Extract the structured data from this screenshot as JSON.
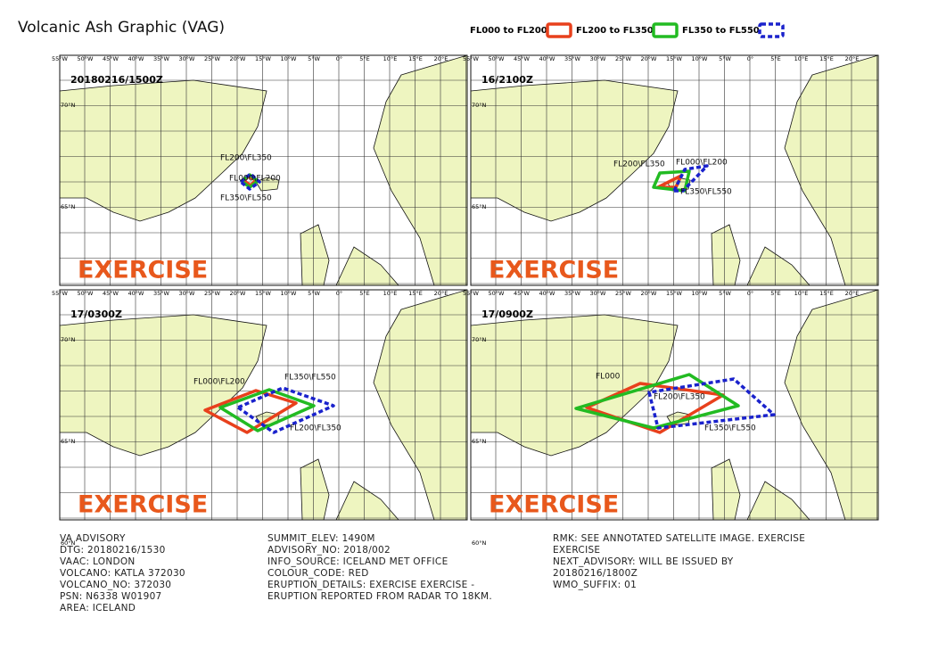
{
  "title": "Volcanic Ash Graphic (VAG)",
  "legend": [
    {
      "label": "FL000 to FL200",
      "color": "#e8401c"
    },
    {
      "label": "FL200 to FL350",
      "color": "#22bb22"
    },
    {
      "label": "FL350 to FL550",
      "color": "#1a22cc"
    }
  ],
  "longitude_labels": [
    "55°W",
    "50°W",
    "45°W",
    "40°W",
    "35°W",
    "30°W",
    "25°W",
    "20°W",
    "15°W",
    "10°W",
    "5°W",
    "0°",
    "5°E",
    "10°E",
    "15°E",
    "20°E"
  ],
  "latitude_labels": [
    "70°N",
    "65°N",
    "60°N"
  ],
  "panels": [
    {
      "time": "20180216/1500Z",
      "watermark": "EXERCISE",
      "labels": [
        "FL200\\FL350",
        "FL000\\FL200",
        "FL350\\FL550"
      ]
    },
    {
      "time": "16/2100Z",
      "watermark": "EXERCISE",
      "labels": [
        "FL200\\FL350",
        "FL000\\FL200",
        "FL350\\FL550"
      ]
    },
    {
      "time": "17/0300Z",
      "watermark": "EXERCISE",
      "labels": [
        "FL000\\FL200",
        "FL350\\FL550",
        "FL200\\FL350"
      ]
    },
    {
      "time": "17/0900Z",
      "watermark": "EXERCISE",
      "labels": [
        "FL000",
        "FL200\\FL350",
        "FL350\\FL550"
      ]
    }
  ],
  "advisory": [
    [
      "VA ADVISORY",
      "DTG: 20180216/1530",
      "VAAC: LONDON",
      "VOLCANO: KATLA 372030",
      "VOLCANO_NO: 372030",
      "PSN: N6338 W01907",
      "AREA: ICELAND"
    ],
    [
      "SUMMIT_ELEV: 1490M",
      "ADVISORY_NO: 2018/002",
      "INFO_SOURCE: ICELAND MET OFFICE",
      "COLOUR_CODE: RED",
      "ERUPTION_DETAILS: EXERCISE EXERCISE -",
      "ERUPTION REPORTED FROM RADAR TO 18KM."
    ],
    [
      "RMK: SEE ANNOTATED SATELLITE IMAGE. EXERCISE",
      "EXERCISE",
      "NEXT_ADVISORY: WILL BE ISSUED BY",
      "20180216/1800Z",
      "WMO_SUFFIX: 01"
    ]
  ]
}
